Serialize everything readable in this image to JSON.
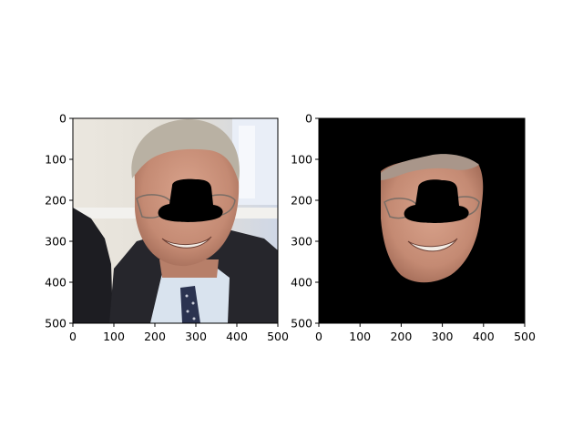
{
  "panels": [
    {
      "name": "original-photo",
      "description_kind": "photo-with-occlusion",
      "x_ticks": [
        "0",
        "100",
        "200",
        "300",
        "400",
        "500"
      ],
      "y_ticks": [
        "0",
        "100",
        "200",
        "300",
        "400",
        "500"
      ],
      "xlim": [
        0,
        500
      ],
      "ylim": [
        0,
        500
      ]
    },
    {
      "name": "masked-face",
      "description_kind": "segmented-face-on-black",
      "x_ticks": [
        "0",
        "100",
        "200",
        "300",
        "400",
        "500"
      ],
      "y_ticks": [
        "0",
        "100",
        "200",
        "300",
        "400",
        "500"
      ],
      "xlim": [
        0,
        500
      ],
      "ylim": [
        0,
        500
      ]
    }
  ],
  "colors": {
    "background": "#ffffff",
    "mask": "#000000",
    "skin": "#c98f78",
    "hair": "#b9b1a3",
    "suit": "#26262c",
    "shirt": "#d9e3ee",
    "tie": "#2b3350",
    "wall": "#e6e2da"
  }
}
